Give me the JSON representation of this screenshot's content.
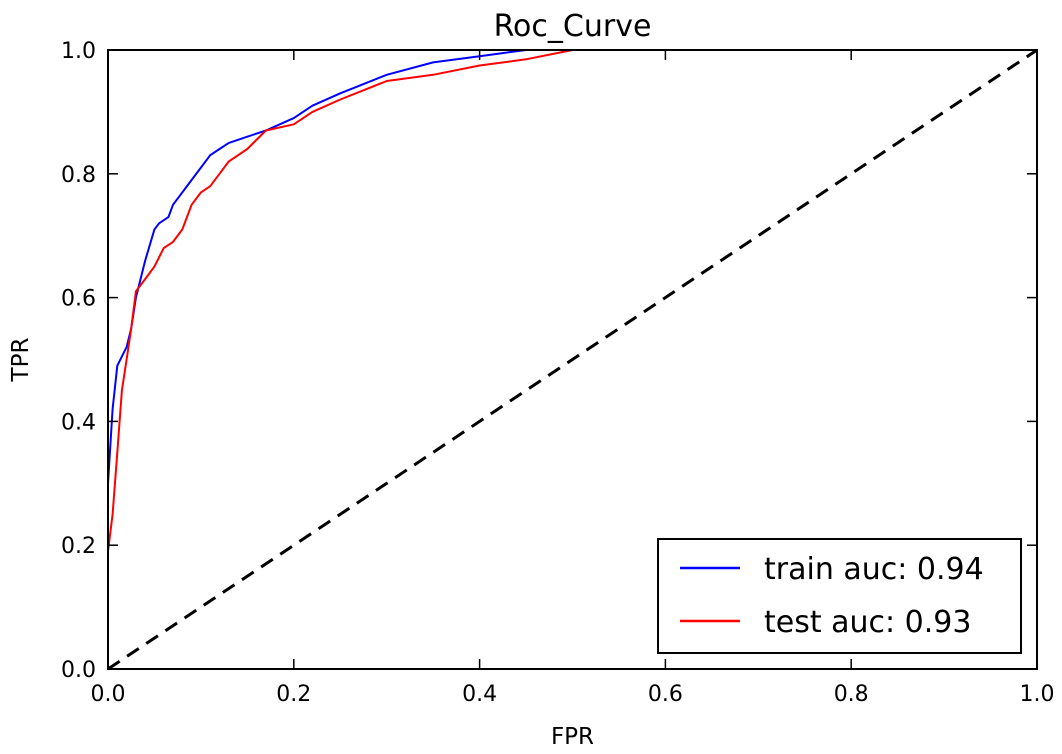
{
  "chart_data": {
    "type": "line",
    "title": "Roc_Curve",
    "xlabel": "FPR",
    "ylabel": "TPR",
    "xlim": [
      0.0,
      1.0
    ],
    "ylim": [
      0.0,
      1.0
    ],
    "xticks": [
      "0.0",
      "0.2",
      "0.4",
      "0.6",
      "0.8",
      "1.0"
    ],
    "yticks": [
      "0.0",
      "0.2",
      "0.4",
      "0.6",
      "0.8",
      "1.0"
    ],
    "grid": false,
    "legend_position": "lower-right",
    "series": [
      {
        "name": "train auc: 0.94",
        "color": "#0000ff",
        "style": "solid",
        "x": [
          0.0,
          0.0,
          0.005,
          0.01,
          0.02,
          0.025,
          0.03,
          0.04,
          0.05,
          0.055,
          0.065,
          0.07,
          0.08,
          0.09,
          0.1,
          0.11,
          0.12,
          0.13,
          0.15,
          0.17,
          0.2,
          0.22,
          0.25,
          0.3,
          0.35,
          0.4,
          0.45,
          0.5,
          1.0
        ],
        "y": [
          0.0,
          0.3,
          0.42,
          0.49,
          0.52,
          0.55,
          0.6,
          0.66,
          0.71,
          0.72,
          0.73,
          0.75,
          0.77,
          0.79,
          0.81,
          0.83,
          0.84,
          0.85,
          0.86,
          0.87,
          0.89,
          0.91,
          0.93,
          0.96,
          0.98,
          0.99,
          1.0,
          1.0,
          1.0
        ]
      },
      {
        "name": "test auc: 0.93",
        "color": "#ff0000",
        "style": "solid",
        "x": [
          0.0,
          0.0,
          0.005,
          0.01,
          0.015,
          0.02,
          0.025,
          0.03,
          0.04,
          0.05,
          0.06,
          0.07,
          0.08,
          0.09,
          0.1,
          0.11,
          0.12,
          0.13,
          0.15,
          0.17,
          0.2,
          0.22,
          0.25,
          0.3,
          0.35,
          0.4,
          0.45,
          0.5,
          1.0
        ],
        "y": [
          0.0,
          0.19,
          0.25,
          0.35,
          0.45,
          0.5,
          0.55,
          0.61,
          0.63,
          0.65,
          0.68,
          0.69,
          0.71,
          0.75,
          0.77,
          0.78,
          0.8,
          0.82,
          0.84,
          0.87,
          0.88,
          0.9,
          0.92,
          0.95,
          0.96,
          0.975,
          0.985,
          1.0,
          1.0
        ]
      },
      {
        "name": "",
        "color": "#000000",
        "style": "dashed",
        "x": [
          0.0,
          1.0
        ],
        "y": [
          0.0,
          1.0
        ]
      }
    ]
  }
}
